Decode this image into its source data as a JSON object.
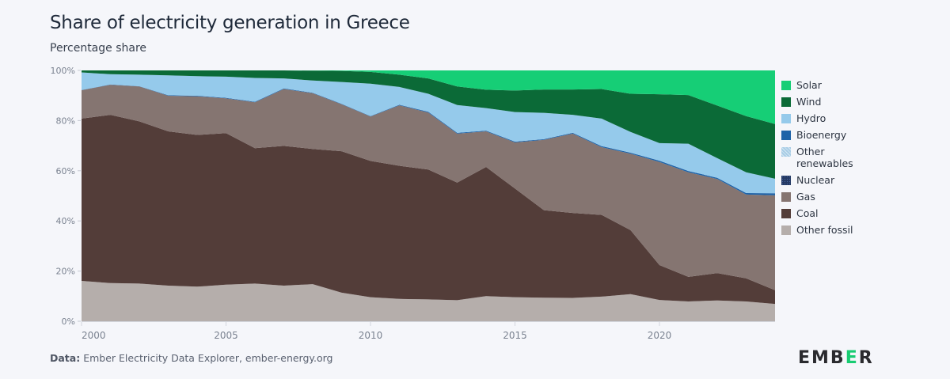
{
  "title": "Share of electricity generation in Greece",
  "subtitle": "Percentage share",
  "footer": {
    "prefix": "Data:",
    "text": "Ember Electricity Data Explorer, ember-energy.org"
  },
  "logo": {
    "left": "EMB",
    "mid": "E",
    "right": "R",
    "accent": "#18cc72"
  },
  "chart_data": {
    "type": "area",
    "stacked": true,
    "title": "Share of electricity generation in Greece",
    "subtitle": "Percentage share",
    "xlabel": "",
    "ylabel": "Percentage share",
    "ylim": [
      0,
      100
    ],
    "xlim": [
      2000,
      2024
    ],
    "x": [
      2000,
      2001,
      2002,
      2003,
      2004,
      2005,
      2006,
      2007,
      2008,
      2009,
      2010,
      2011,
      2012,
      2013,
      2014,
      2015,
      2016,
      2017,
      2018,
      2019,
      2020,
      2021,
      2022,
      2023,
      2024
    ],
    "x_ticks": [
      2000,
      2005,
      2010,
      2015,
      2020
    ],
    "x_tick_labels": [
      "2000",
      "2005",
      "2010",
      "2015",
      "2020"
    ],
    "y_ticks": [
      0,
      20,
      40,
      60,
      80,
      100
    ],
    "y_tick_labels": [
      "0%",
      "20%",
      "40%",
      "60%",
      "80%",
      "100%"
    ],
    "legend_position": "right",
    "grid": false,
    "series": [
      {
        "name": "Other fossil",
        "color": "#b5aeab",
        "values": [
          16.1,
          15.2,
          15.0,
          14.2,
          13.8,
          14.6,
          15.0,
          14.2,
          14.8,
          11.4,
          9.6,
          8.9,
          8.7,
          8.4,
          10.0,
          9.6,
          9.4,
          9.3,
          9.8,
          10.8,
          8.5,
          7.9,
          8.3,
          7.9,
          6.9
        ]
      },
      {
        "name": "Coal",
        "color": "#533d39",
        "values": [
          64.7,
          67.1,
          64.7,
          61.5,
          60.5,
          60.4,
          54.0,
          55.7,
          53.9,
          56.4,
          54.3,
          53.1,
          51.8,
          46.9,
          51.5,
          43.3,
          34.9,
          33.9,
          32.6,
          25.5,
          13.9,
          9.8,
          10.9,
          9.2,
          5.5
        ]
      },
      {
        "name": "Gas",
        "color": "#857571",
        "values": [
          11.3,
          12.0,
          13.9,
          14.2,
          15.4,
          13.9,
          18.3,
          22.7,
          22.2,
          18.7,
          17.7,
          24.1,
          22.7,
          19.5,
          14.2,
          18.4,
          28.0,
          31.6,
          27.0,
          30.5,
          41.1,
          41.7,
          37.5,
          33.4,
          37.8
        ]
      },
      {
        "name": "Nuclear",
        "color": "#253a64",
        "values": [
          0,
          0,
          0,
          0,
          0,
          0,
          0,
          0,
          0,
          0,
          0,
          0,
          0,
          0,
          0,
          0,
          0,
          0,
          0,
          0,
          0,
          0,
          0,
          0,
          0
        ]
      },
      {
        "name": "Other renewables",
        "color": "#a9cde6",
        "values": [
          0,
          0,
          0,
          0,
          0,
          0,
          0,
          0,
          0,
          0,
          0,
          0,
          0,
          0,
          0,
          0,
          0,
          0,
          0,
          0,
          0,
          0,
          0,
          0,
          0
        ]
      },
      {
        "name": "Bioenergy",
        "color": "#1e63a8",
        "values": [
          0.1,
          0.1,
          0.1,
          0.2,
          0.2,
          0.2,
          0.2,
          0.2,
          0.2,
          0.2,
          0.2,
          0.2,
          0.3,
          0.3,
          0.3,
          0.3,
          0.3,
          0.3,
          0.4,
          0.4,
          0.5,
          0.5,
          0.5,
          0.6,
          0.8
        ]
      },
      {
        "name": "Hydro",
        "color": "#95caeb",
        "values": [
          7.0,
          4.1,
          4.6,
          7.9,
          7.8,
          8.4,
          9.5,
          4.0,
          4.9,
          8.7,
          12.9,
          7.1,
          7.2,
          11.1,
          9.0,
          11.8,
          10.5,
          7.2,
          11.0,
          8.3,
          7.0,
          10.9,
          7.8,
          8.3,
          5.8
        ]
      },
      {
        "name": "Wind",
        "color": "#0b6a37",
        "values": [
          0.8,
          1.5,
          1.7,
          2.0,
          2.3,
          2.5,
          3.0,
          3.2,
          3.9,
          4.4,
          4.7,
          4.9,
          6.1,
          7.4,
          7.3,
          8.6,
          9.3,
          10.1,
          11.8,
          15.2,
          19.5,
          19.4,
          21.0,
          22.4,
          21.8
        ]
      },
      {
        "name": "Solar",
        "color": "#16ce76",
        "values": [
          0.0,
          0.0,
          0.0,
          0.0,
          0.0,
          0.0,
          0.0,
          0.0,
          0.1,
          0.2,
          0.6,
          1.7,
          3.2,
          6.4,
          7.7,
          8.0,
          7.6,
          7.6,
          7.4,
          9.3,
          9.5,
          9.8,
          14.0,
          18.2,
          21.4
        ]
      }
    ],
    "legend": [
      {
        "name": "Solar",
        "color": "#16ce76"
      },
      {
        "name": "Wind",
        "color": "#0b6a37"
      },
      {
        "name": "Hydro",
        "color": "#95caeb"
      },
      {
        "name": "Bioenergy",
        "color": "#1e63a8"
      },
      {
        "name": "Other renewables",
        "color": "#a9cde6"
      },
      {
        "name": "Nuclear",
        "color": "#253a64"
      },
      {
        "name": "Gas",
        "color": "#857571"
      },
      {
        "name": "Coal",
        "color": "#533d39"
      },
      {
        "name": "Other fossil",
        "color": "#b5aeab"
      }
    ]
  }
}
